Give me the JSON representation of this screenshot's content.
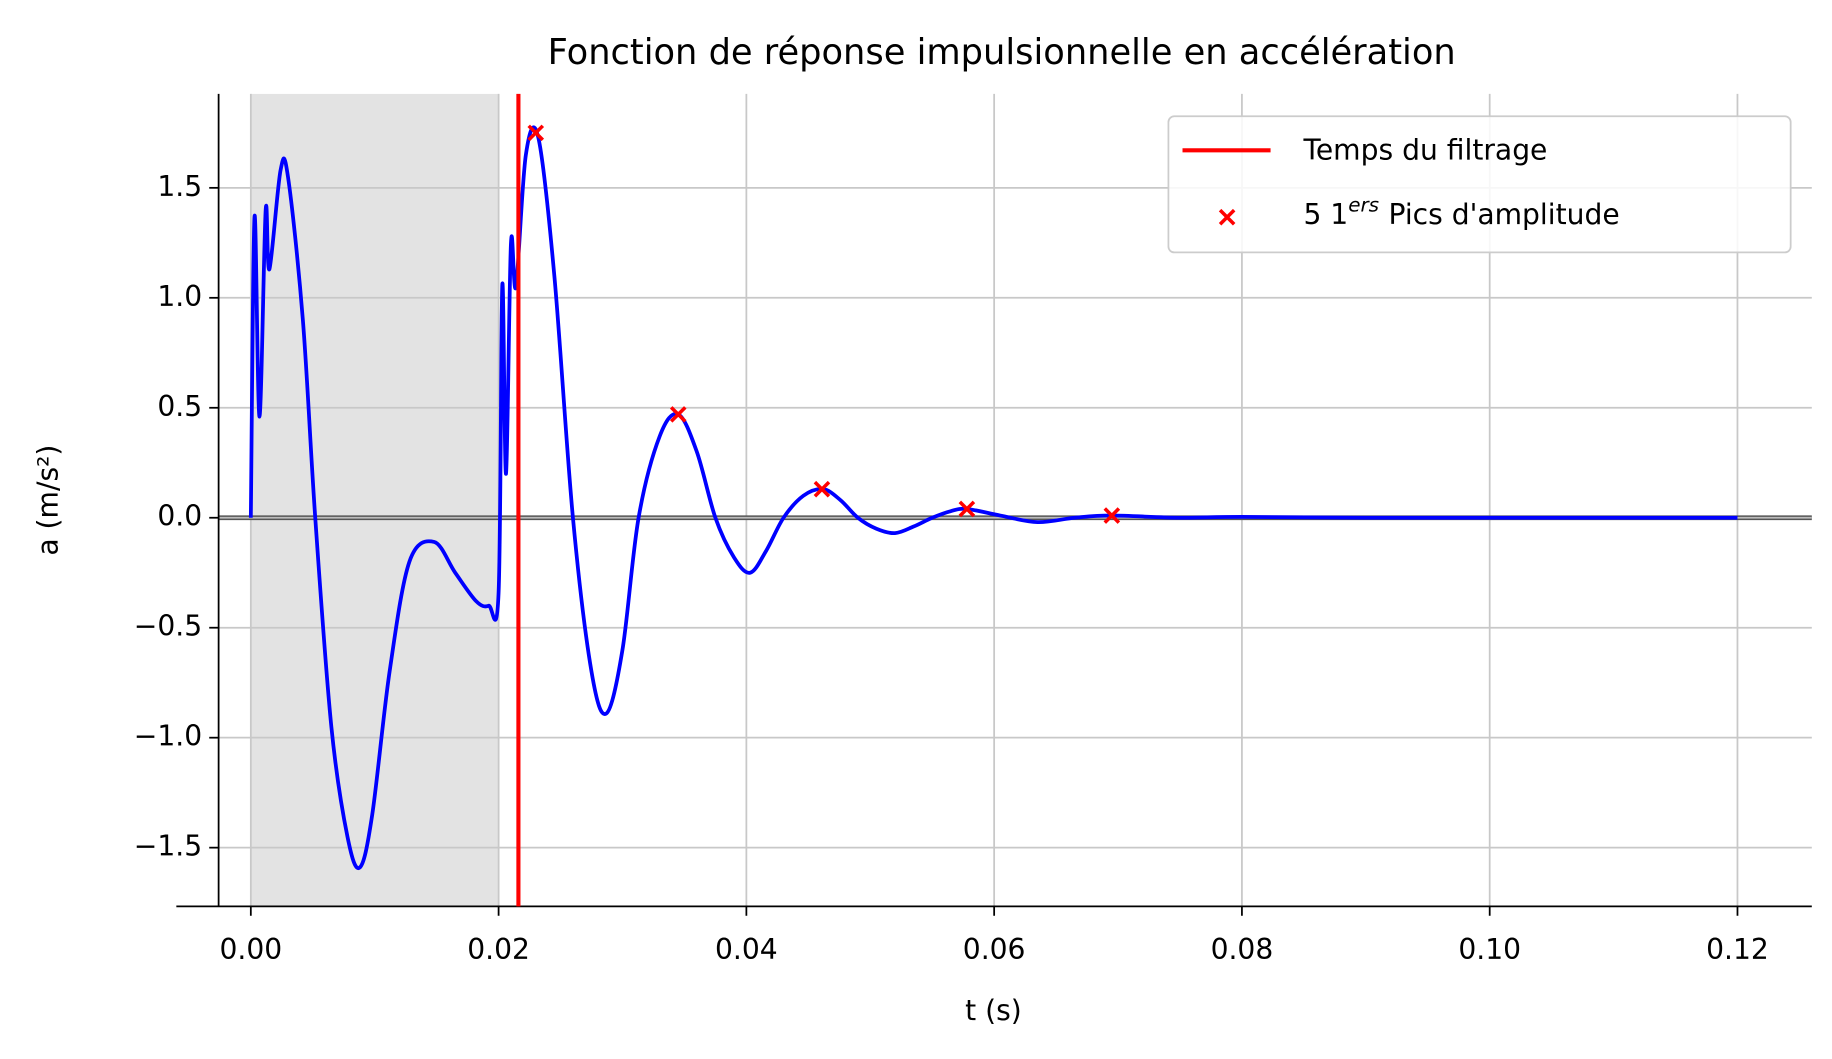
{
  "chart_data": {
    "type": "line",
    "title": "Fonction de réponse impulsionnelle en accélération",
    "xlabel": "t (s)",
    "ylabel": "a (m/s²)",
    "xlim": [
      -0.0026,
      0.126
    ],
    "ylim": [
      -1.767,
      1.927
    ],
    "xticks": [
      {
        "value": 0,
        "label": "0.00"
      },
      {
        "value": 0.02,
        "label": "0.02"
      },
      {
        "value": 0.04,
        "label": "0.04"
      },
      {
        "value": 0.06,
        "label": "0.06"
      },
      {
        "value": 0.08,
        "label": "0.08"
      },
      {
        "value": 0.1,
        "label": "0.10"
      },
      {
        "value": 0.12,
        "label": "0.12"
      }
    ],
    "yticks": [
      {
        "value": -1.5,
        "label": "−1.5"
      },
      {
        "value": -1,
        "label": "−1.0"
      },
      {
        "value": -0.5,
        "label": "−0.5"
      },
      {
        "value": 0,
        "label": "0.0"
      },
      0.5,
      {
        "value": 1,
        "label": "1.0"
      },
      1.5
    ],
    "grid": true,
    "color": "#0000ff",
    "x": [
      0,
      0.0003,
      0.0007,
      0.0012,
      0.0015,
      0.0024,
      0.003,
      0.0042,
      0.0052,
      0.0065,
      0.0078,
      0.0088,
      0.0098,
      0.0112,
      0.0128,
      0.0148,
      0.0165,
      0.0182,
      0.0192,
      0.02,
      0.0203,
      0.0206,
      0.021,
      0.0214,
      0.0222,
      0.0232,
      0.0245,
      0.026,
      0.0275,
      0.0287,
      0.03,
      0.0313,
      0.033,
      0.0345,
      0.036,
      0.0375,
      0.039,
      0.0403,
      0.0416,
      0.043,
      0.0446,
      0.0462,
      0.0476,
      0.049,
      0.0505,
      0.052,
      0.0535,
      0.055,
      0.0565,
      0.0578,
      0.0605,
      0.0635,
      0.0665,
      0.0695,
      0.075,
      0.08,
      0.09,
      0.1,
      0.11,
      0.12
    ],
    "values": [
      0,
      1.37,
      0.46,
      1.4,
      1.13,
      1.58,
      1.55,
      0.9,
      0,
      -0.95,
      -1.45,
      -1.59,
      -1.35,
      -0.7,
      -0.2,
      -0.11,
      -0.25,
      -0.38,
      -0.4,
      -0.34,
      1.06,
      0.2,
      1.25,
      1.05,
      1.65,
      1.73,
      1.1,
      0,
      -0.7,
      -0.89,
      -0.6,
      0,
      0.37,
      0.47,
      0.3,
      0,
      -0.18,
      -0.25,
      -0.15,
      0,
      0.1,
      0.13,
      0.08,
      0,
      -0.05,
      -0.07,
      -0.04,
      0,
      0.03,
      0.04,
      0.01,
      -0.02,
      0,
      0.01,
      0,
      0.004,
      0,
      0,
      0,
      0
    ],
    "shaded_span": [
      0,
      0.02
    ],
    "hline": 0,
    "vline": {
      "name": "Temps du filtrage",
      "x": 0.0216,
      "color": "#ff0000"
    },
    "markers": {
      "name": {
        "prefix": "5 1",
        "sup": "ers",
        "suffix": "Pics d'amplitude"
      },
      "color": "#ff0000",
      "x": [
        0.023,
        0.0345,
        0.0461,
        0.0578,
        0.0695
      ],
      "y": [
        1.75,
        0.47,
        0.13,
        0.04,
        0.01
      ]
    },
    "legend": "upper right"
  }
}
